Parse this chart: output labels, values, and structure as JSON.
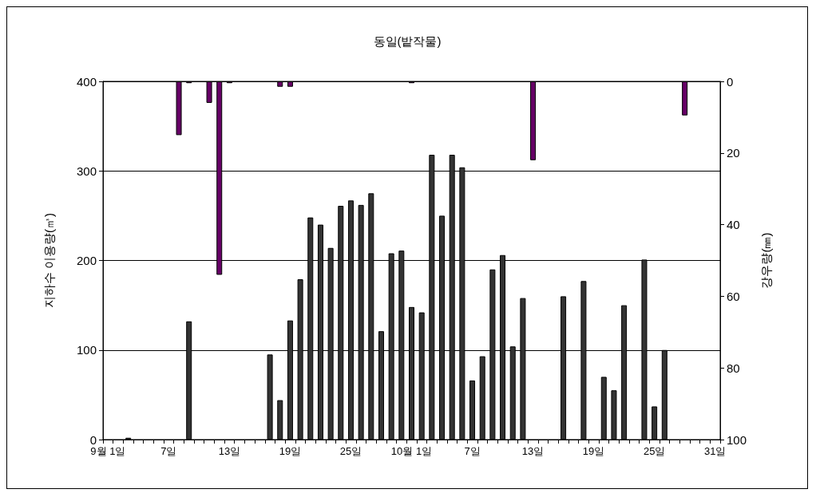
{
  "chart_data": {
    "type": "bar",
    "title": "동일(밭작물)",
    "ylabel": "지하수 이용량(㎥)",
    "y2label": "강우량(㎜)",
    "categories": [
      "9월 1일",
      null,
      null,
      null,
      null,
      null,
      "7일",
      null,
      null,
      null,
      null,
      null,
      "13일",
      null,
      null,
      null,
      null,
      null,
      "19일",
      null,
      null,
      null,
      null,
      null,
      "25일",
      null,
      null,
      null,
      null,
      null,
      "10월 1일",
      null,
      null,
      null,
      null,
      null,
      "7일",
      null,
      null,
      null,
      null,
      null,
      "13일",
      null,
      null,
      null,
      null,
      null,
      "19일",
      null,
      null,
      null,
      null,
      null,
      "25일",
      null,
      null,
      null,
      null,
      null,
      "31일"
    ],
    "series": [
      {
        "color": "#333333",
        "values": [
          null,
          null,
          2,
          null,
          null,
          null,
          null,
          null,
          132,
          null,
          null,
          null,
          null,
          null,
          null,
          null,
          95,
          44,
          133,
          179,
          248,
          240,
          214,
          261,
          267,
          262,
          275,
          121,
          208,
          211,
          148,
          142,
          318,
          250,
          318,
          304,
          66,
          93,
          190,
          206,
          104,
          158,
          null,
          null,
          null,
          160,
          null,
          177,
          null,
          70,
          55,
          150,
          null,
          201,
          37,
          100,
          null,
          null,
          null,
          null,
          null
        ]
      },
      {
        "color": "#660066",
        "axis": "y2",
        "values": [
          null,
          null,
          null,
          null,
          null,
          null,
          null,
          15,
          0.5,
          null,
          6,
          54,
          0.5,
          null,
          null,
          null,
          null,
          1.5,
          1.5,
          null,
          null,
          null,
          null,
          null,
          null,
          null,
          null,
          null,
          null,
          null,
          0.5,
          null,
          null,
          null,
          null,
          null,
          null,
          null,
          null,
          null,
          null,
          null,
          22,
          null,
          null,
          null,
          null,
          null,
          null,
          null,
          null,
          null,
          null,
          null,
          null,
          null,
          null,
          9.5,
          null,
          null,
          null
        ]
      }
    ],
    "ylim": [
      0,
      400
    ],
    "yticks": [
      0,
      100,
      200,
      300,
      400
    ],
    "y2lim": [
      100,
      0
    ],
    "y2ticks": [
      0,
      20,
      40,
      60,
      80,
      100
    ],
    "grid": "y"
  }
}
